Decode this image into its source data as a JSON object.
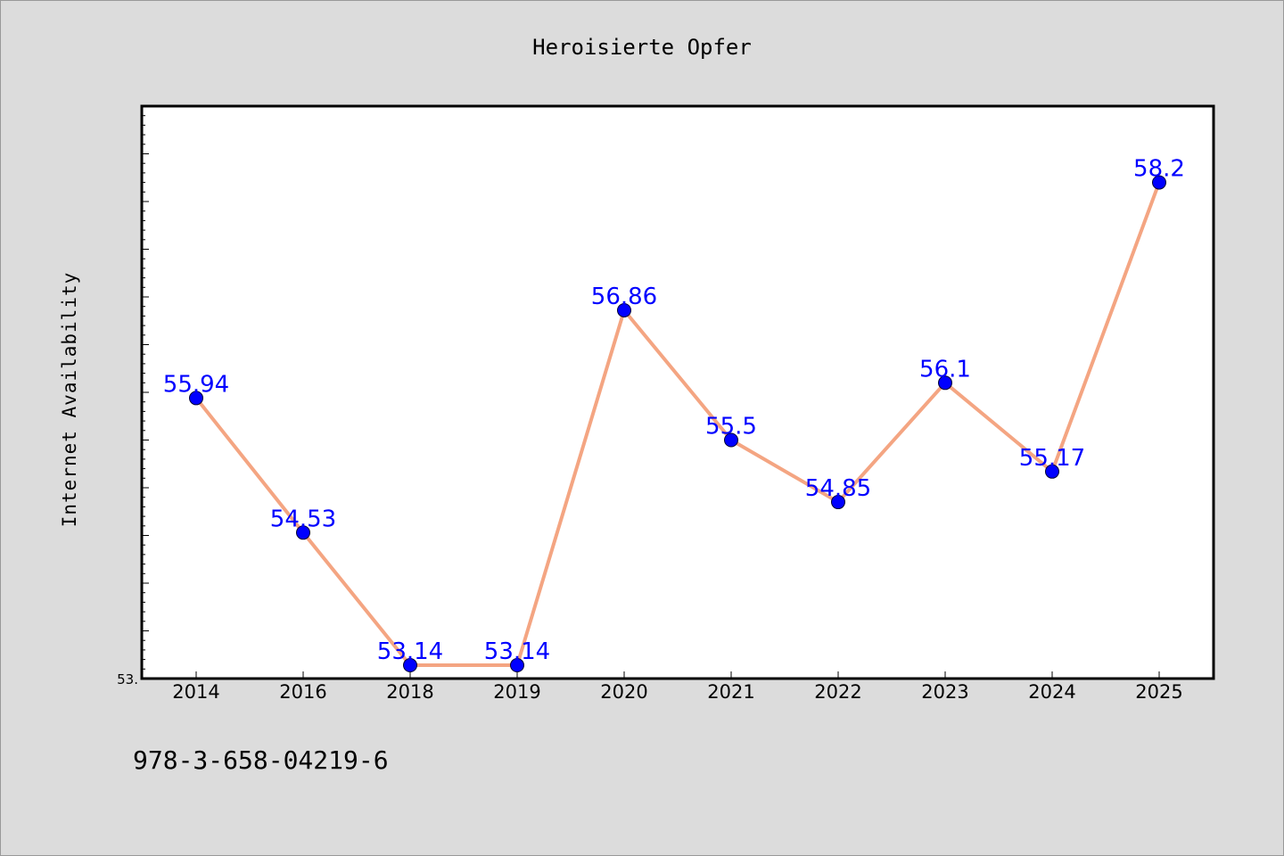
{
  "chart_data": {
    "type": "line",
    "title": "Heroisierte Opfer",
    "xlabel": "",
    "ylabel": "Internet Availability",
    "categories": [
      "2014",
      "2016",
      "2018",
      "2019",
      "2020",
      "2021",
      "2022",
      "2023",
      "2024",
      "2025"
    ],
    "series": [
      {
        "values": [
          55.94,
          54.53,
          53.14,
          53.14,
          56.86,
          55.5,
          54.85,
          56.1,
          55.17,
          58.2
        ],
        "data_labels": [
          "55.94",
          "54.53",
          "53.14",
          "53.14",
          "56.86",
          "55.5",
          "54.85",
          "56.1",
          "55.17",
          "58.2"
        ]
      }
    ],
    "ylim": [
      53.0,
      59.0
    ],
    "y_tick_label": "53.",
    "grid": false,
    "legend": "none",
    "line_color": "#f4a582",
    "marker_color": "#0000ff",
    "label_color": "#0000ff",
    "plot_background": "#ffffff",
    "page_background": "#dcdcdc"
  },
  "footer": {
    "isbn": "978-3-658-04219-6"
  }
}
